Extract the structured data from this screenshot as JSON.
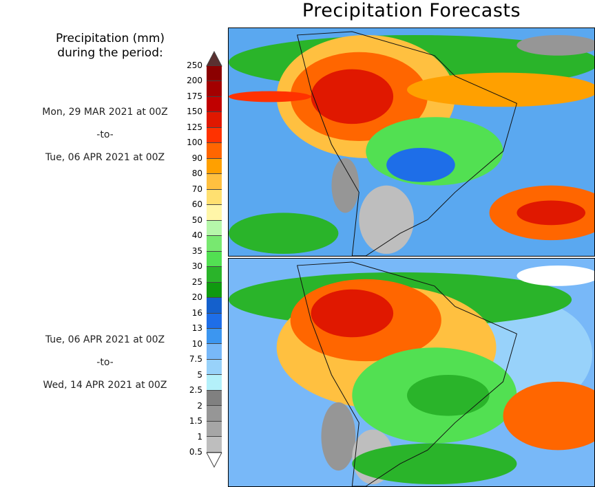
{
  "title": "Precipitation Forecasts",
  "legend": {
    "title_line1": "Precipitation (mm)",
    "title_line2": "during the period:",
    "labels": [
      "250",
      "200",
      "175",
      "150",
      "125",
      "100",
      "90",
      "80",
      "70",
      "60",
      "50",
      "40",
      "35",
      "30",
      "25",
      "20",
      "16",
      "13",
      "10",
      "7.5",
      "5",
      "2.5",
      "2",
      "1.5",
      "1",
      "0.5"
    ],
    "colors": [
      "#8b0000",
      "#a30000",
      "#c00000",
      "#e01800",
      "#ff3200",
      "#ff6600",
      "#ffa000",
      "#ffc040",
      "#ffe070",
      "#fff6a8",
      "#b6f7aa",
      "#78e870",
      "#52e052",
      "#2ab42a",
      "#0f9a0f",
      "#1460cc",
      "#1e6ee8",
      "#3c96f0",
      "#78b8f8",
      "#98d2fa",
      "#b4f0fa",
      "#808080",
      "#969696",
      "#a6a6a6",
      "#bebebe"
    ],
    "over_color": "#5a3030",
    "under_color": "#ffffff"
  },
  "periods": [
    {
      "start": "Mon, 29 MAR 2021 at 00Z",
      "sep": "-to-",
      "end": "Tue, 06 APR 2021 at 00Z"
    },
    {
      "start": "Tue, 06 APR 2021 at 00Z",
      "sep": "-to-",
      "end": "Wed, 14 APR 2021 at 00Z"
    }
  ]
}
